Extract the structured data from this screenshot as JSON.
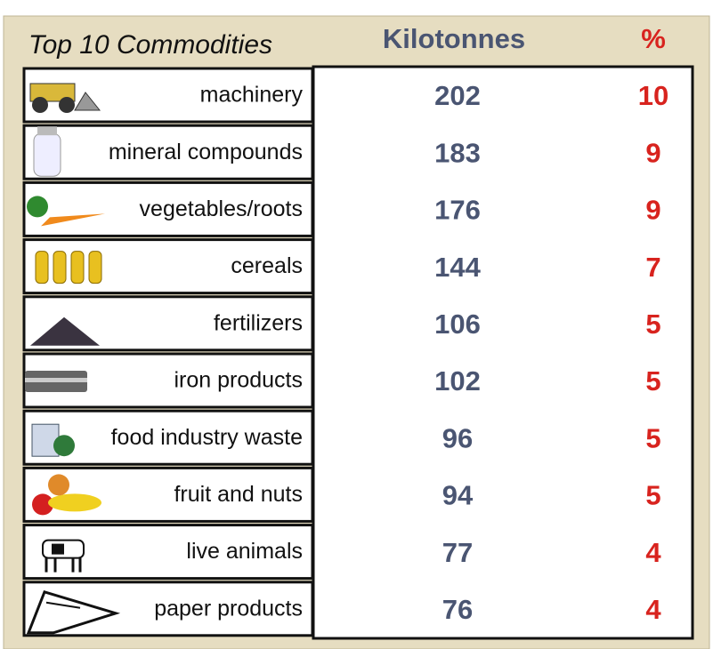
{
  "table": {
    "title": "Top 10 Commodities",
    "headers": [
      "Kilotonnes",
      "%"
    ],
    "rows": [
      [
        "machinery",
        "202",
        "10"
      ],
      [
        "mineral compounds",
        "183",
        "9"
      ],
      [
        "vegetables/roots",
        "176",
        "9"
      ],
      [
        "cereals",
        "144",
        "7"
      ],
      [
        "fertilizers",
        "106",
        "5"
      ],
      [
        "iron products",
        "102",
        "5"
      ],
      [
        "food industry waste",
        "96",
        "5"
      ],
      [
        "fruit and nuts",
        "94",
        "5"
      ],
      [
        "live animals",
        "77",
        "4"
      ],
      [
        "paper products",
        "76",
        "4"
      ]
    ]
  }
}
